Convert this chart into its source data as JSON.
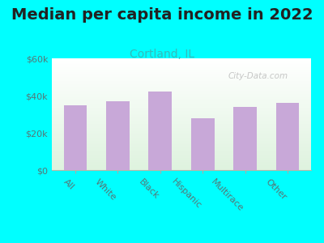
{
  "title": "Median per capita income in 2022",
  "subtitle": "Cortland, IL",
  "categories": [
    "All",
    "White",
    "Black",
    "Hispanic",
    "Multirace",
    "Other"
  ],
  "values": [
    35000,
    37000,
    42000,
    28000,
    34000,
    36000
  ],
  "bar_color": "#C8A8D8",
  "title_fontsize": 14,
  "subtitle_fontsize": 10,
  "subtitle_color": "#33BBBB",
  "background_color": "#00FFFF",
  "plot_bg_top": "#F5FFF5",
  "plot_bg_bottom": "#E0F0E0",
  "ylim": [
    0,
    60000
  ],
  "yticks": [
    0,
    20000,
    40000,
    60000
  ],
  "ytick_labels": [
    "$0",
    "$20k",
    "$40k",
    "$60k"
  ],
  "watermark": "City-Data.com",
  "xlabel_rotation": -45,
  "tick_label_color": "#557777"
}
